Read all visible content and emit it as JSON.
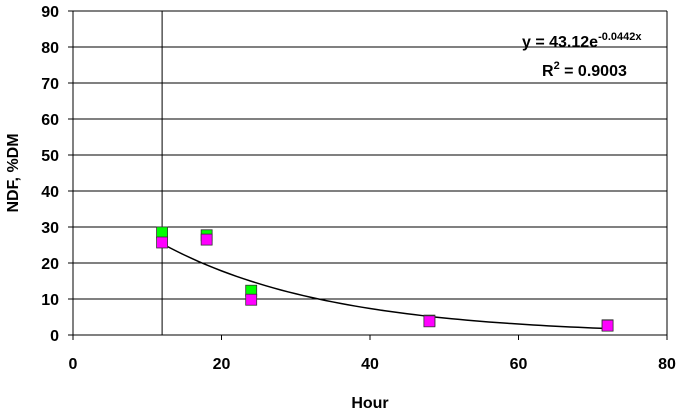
{
  "chart_data": {
    "type": "scatter",
    "x_label": "Hour",
    "y_label": "NDF, %DM",
    "series": [
      {
        "color": "#00ff00",
        "x": [
          12,
          18,
          24,
          48,
          72
        ],
        "values": [
          28.5,
          27.7,
          12.3,
          4.0,
          2.7
        ]
      },
      {
        "color": "#ff00ff",
        "x": [
          12,
          18,
          24,
          48,
          72
        ],
        "values": [
          25.7,
          26.5,
          9.8,
          3.8,
          2.6
        ]
      }
    ],
    "trendline": {
      "a": 43.12,
      "b": -0.0442,
      "x_range": [
        12,
        72
      ],
      "color": "#000000"
    },
    "equation": [
      "y = 43.12e",
      "-0.0442x"
    ],
    "r_squared": [
      "R",
      "2",
      " = 0.9003"
    ],
    "reference_line_x": 12,
    "xlim": [
      0,
      80
    ],
    "xticks": [
      0,
      20,
      40,
      60,
      80
    ],
    "ylim": [
      0,
      90
    ],
    "yticks": [
      0,
      10,
      20,
      30,
      40,
      50,
      60,
      70,
      80,
      90
    ],
    "grid": true
  }
}
